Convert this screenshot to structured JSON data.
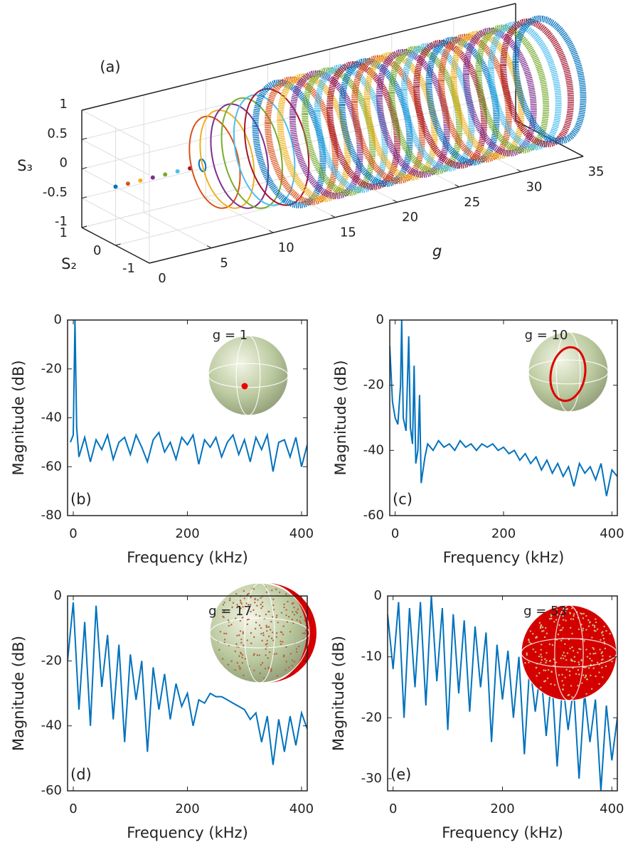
{
  "chart_data": [
    {
      "type": "scatter3d",
      "panel_label": "(a)",
      "xlabel": "g",
      "ylabel": "S₂",
      "zlabel": "S₃",
      "x": [
        0,
        1,
        2,
        3,
        4,
        5,
        6,
        7,
        8,
        9,
        10,
        11,
        12,
        13,
        14,
        15,
        16,
        17,
        18,
        19,
        20,
        21,
        22,
        23,
        24,
        25,
        26,
        27,
        28,
        29,
        30,
        31,
        32,
        33,
        34,
        35
      ],
      "values": [
        0,
        0,
        0,
        0,
        0,
        0,
        0,
        0.1,
        0.75,
        0.8,
        0.85,
        0.9,
        0.9,
        0.95,
        1,
        1,
        1,
        1,
        1,
        1,
        1,
        1,
        1,
        1,
        1,
        1,
        1,
        1,
        1,
        1,
        1,
        1,
        1,
        1,
        1,
        1
      ],
      "colors": [
        "#0072BD",
        "#D95319",
        "#EDB120",
        "#7E2F8E",
        "#77AC30",
        "#4DBEEE",
        "#A2142F"
      ],
      "xlim": [
        0,
        35
      ],
      "ylim": [
        -1,
        1
      ],
      "zlim": [
        -1,
        1
      ],
      "xticks": [
        0,
        5,
        10,
        15,
        20,
        25,
        30,
        35
      ],
      "yticks": [
        -1,
        0,
        1
      ],
      "zticks": [
        -1,
        -0.5,
        0,
        0.5,
        1
      ],
      "grid": true
    },
    {
      "type": "line",
      "panel_label": "(b)",
      "annotation": "g = 1",
      "xlabel": "Frequency (kHz)",
      "ylabel": "Magnitude (dB)",
      "color": "#0072BD",
      "x": [
        -5,
        0,
        3,
        6,
        10,
        20,
        30,
        40,
        50,
        60,
        70,
        80,
        90,
        100,
        110,
        120,
        130,
        140,
        150,
        160,
        170,
        180,
        190,
        200,
        210,
        220,
        230,
        240,
        250,
        260,
        270,
        280,
        290,
        300,
        310,
        320,
        330,
        340,
        350,
        360,
        370,
        380,
        390,
        400,
        410
      ],
      "values": [
        -50,
        -47,
        0,
        -44,
        -56,
        -48,
        -58,
        -49,
        -53,
        -47,
        -57,
        -50,
        -48,
        -55,
        -47,
        -52,
        -58,
        -49,
        -46,
        -54,
        -50,
        -57,
        -48,
        -51,
        -47,
        -59,
        -49,
        -52,
        -48,
        -56,
        -50,
        -47,
        -55,
        -49,
        -58,
        -48,
        -53,
        -47,
        -62,
        -50,
        -49,
        -56,
        -48,
        -60,
        -51
      ],
      "xlim": [
        -10,
        410
      ],
      "ylim": [
        -80,
        0
      ],
      "xticks": [
        0,
        200,
        400
      ],
      "yticks": [
        -80,
        -60,
        -40,
        -20,
        0
      ]
    },
    {
      "type": "line",
      "panel_label": "(c)",
      "annotation": "g = 10",
      "xlabel": "Frequency (kHz)",
      "ylabel": "Magnitude (dB)",
      "color": "#0072BD",
      "x": [
        -10,
        -5,
        0,
        5,
        10,
        12,
        15,
        20,
        25,
        28,
        32,
        35,
        38,
        42,
        45,
        48,
        55,
        60,
        70,
        80,
        90,
        100,
        110,
        120,
        130,
        140,
        150,
        160,
        170,
        180,
        190,
        200,
        210,
        220,
        230,
        240,
        250,
        260,
        270,
        280,
        290,
        300,
        310,
        320,
        330,
        340,
        350,
        360,
        370,
        380,
        390,
        400,
        410
      ],
      "values": [
        -8,
        -25,
        -30,
        -32,
        -20,
        0,
        -30,
        -34,
        -5,
        -33,
        -38,
        -14,
        -44,
        -40,
        -23,
        -50,
        -42,
        -38,
        -40,
        -37,
        -39,
        -38,
        -40,
        -37,
        -39,
        -38,
        -40,
        -38,
        -39,
        -38,
        -40,
        -39,
        -41,
        -40,
        -43,
        -41,
        -44,
        -42,
        -46,
        -43,
        -47,
        -44,
        -48,
        -45,
        -51,
        -44,
        -47,
        -45,
        -49,
        -44,
        -54,
        -46,
        -48
      ],
      "xlim": [
        -10,
        410
      ],
      "ylim": [
        -60,
        0
      ],
      "xticks": [
        0,
        200,
        400
      ],
      "yticks": [
        -60,
        -40,
        -20,
        0
      ]
    },
    {
      "type": "line",
      "panel_label": "(d)",
      "annotation": "g = 17",
      "xlabel": "Frequency (kHz)",
      "ylabel": "Magnitude (dB)",
      "color": "#0072BD",
      "x": [
        -10,
        0,
        10,
        20,
        30,
        40,
        50,
        60,
        70,
        80,
        90,
        100,
        110,
        120,
        130,
        140,
        150,
        160,
        170,
        180,
        190,
        200,
        210,
        220,
        230,
        240,
        250,
        260,
        270,
        280,
        290,
        300,
        310,
        320,
        330,
        340,
        350,
        360,
        370,
        380,
        390,
        400,
        410
      ],
      "values": [
        -20,
        -2,
        -35,
        -8,
        -40,
        -3,
        -28,
        -12,
        -38,
        -15,
        -45,
        -18,
        -32,
        -20,
        -48,
        -22,
        -35,
        -24,
        -38,
        -27,
        -34,
        -30,
        -40,
        -32,
        -33,
        -30,
        -31,
        -31,
        -32,
        -33,
        -34,
        -35,
        -38,
        -36,
        -45,
        -37,
        -52,
        -38,
        -48,
        -37,
        -46,
        -36,
        -41
      ],
      "xlim": [
        -10,
        410
      ],
      "ylim": [
        -60,
        0
      ],
      "xticks": [
        0,
        200,
        400
      ],
      "yticks": [
        -60,
        -40,
        -20,
        0
      ]
    },
    {
      "type": "line",
      "panel_label": "(e)",
      "annotation": "g = 53",
      "xlabel": "Frequency (kHz)",
      "ylabel": "Magnitude (dB)",
      "color": "#0072BD",
      "x": [
        -10,
        0,
        10,
        20,
        30,
        40,
        50,
        60,
        70,
        80,
        90,
        100,
        110,
        120,
        130,
        140,
        150,
        160,
        170,
        180,
        190,
        200,
        210,
        220,
        230,
        240,
        250,
        260,
        270,
        280,
        290,
        300,
        310,
        320,
        330,
        340,
        350,
        360,
        370,
        380,
        390,
        400,
        410
      ],
      "values": [
        -3,
        -12,
        -1,
        -20,
        -2,
        -15,
        -1,
        -18,
        0,
        -14,
        -2,
        -22,
        -3,
        -16,
        -4,
        -19,
        -5,
        -15,
        -6,
        -24,
        -8,
        -17,
        -9,
        -20,
        -10,
        -26,
        -11,
        -19,
        -12,
        -23,
        -13,
        -28,
        -14,
        -22,
        -15,
        -30,
        -16,
        -24,
        -17,
        -32,
        -18,
        -27,
        -20
      ],
      "xlim": [
        -10,
        410
      ],
      "ylim": [
        -32,
        0
      ],
      "xticks": [
        0,
        200,
        400
      ],
      "yticks": [
        -30,
        -20,
        -10,
        0
      ]
    }
  ]
}
